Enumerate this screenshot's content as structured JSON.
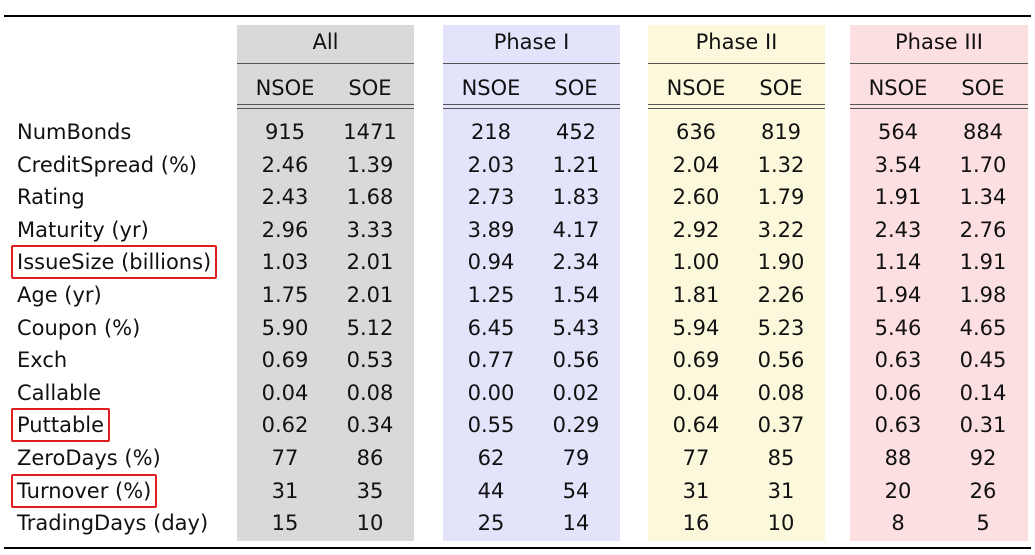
{
  "groups": [
    {
      "title": "All",
      "color": "#d9d9d9"
    },
    {
      "title": "Phase I",
      "color": "#e3e3fb"
    },
    {
      "title": "Phase II",
      "color": "#fbf8dc"
    },
    {
      "title": "Phase III",
      "color": "#fbdfe1"
    }
  ],
  "subheaders": [
    "NSOE",
    "SOE"
  ],
  "rows": [
    {
      "label": "NumBonds",
      "values": [
        "915",
        "1471",
        "218",
        "452",
        "636",
        "819",
        "564",
        "884"
      ]
    },
    {
      "label": "CreditSpread (%)",
      "values": [
        "2.46",
        "1.39",
        "2.03",
        "1.21",
        "2.04",
        "1.32",
        "3.54",
        "1.70"
      ]
    },
    {
      "label": "Rating",
      "values": [
        "2.43",
        "1.68",
        "2.73",
        "1.83",
        "2.60",
        "1.79",
        "1.91",
        "1.34"
      ]
    },
    {
      "label": "Maturity (yr)",
      "values": [
        "2.96",
        "3.33",
        "3.89",
        "4.17",
        "2.92",
        "3.22",
        "2.43",
        "2.76"
      ]
    },
    {
      "label": "IssueSize (billions)",
      "values": [
        "1.03",
        "2.01",
        "0.94",
        "2.34",
        "1.00",
        "1.90",
        "1.14",
        "1.91"
      ]
    },
    {
      "label": "Age (yr)",
      "values": [
        "1.75",
        "2.01",
        "1.25",
        "1.54",
        "1.81",
        "2.26",
        "1.94",
        "1.98"
      ]
    },
    {
      "label": "Coupon (%)",
      "values": [
        "5.90",
        "5.12",
        "6.45",
        "5.43",
        "5.94",
        "5.23",
        "5.46",
        "4.65"
      ]
    },
    {
      "label": "Exch",
      "values": [
        "0.69",
        "0.53",
        "0.77",
        "0.56",
        "0.69",
        "0.56",
        "0.63",
        "0.45"
      ]
    },
    {
      "label": "Callable",
      "values": [
        "0.04",
        "0.08",
        "0.00",
        "0.02",
        "0.04",
        "0.08",
        "0.06",
        "0.14"
      ]
    },
    {
      "label": "Puttable",
      "values": [
        "0.62",
        "0.34",
        "0.55",
        "0.29",
        "0.64",
        "0.37",
        "0.63",
        "0.31"
      ]
    },
    {
      "label": "ZeroDays (%)",
      "values": [
        "77",
        "86",
        "62",
        "79",
        "77",
        "85",
        "88",
        "92"
      ]
    },
    {
      "label": "Turnover (%)",
      "values": [
        "31",
        "35",
        "44",
        "54",
        "31",
        "31",
        "20",
        "26"
      ]
    },
    {
      "label": "TradingDays (day)",
      "values": [
        "15",
        "10",
        "25",
        "14",
        "16",
        "10",
        "8",
        "5"
      ]
    }
  ],
  "highlighted_rows": [
    "IssueSize (billions)",
    "Puttable",
    "Turnover (%)"
  ],
  "highlight_color": "#e11d1d"
}
